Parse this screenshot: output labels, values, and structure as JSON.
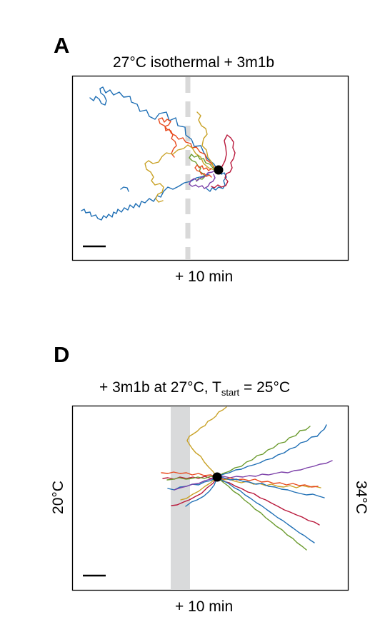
{
  "panel_a": {
    "letter": "A",
    "title": "27°C isothermal + 3m1b",
    "caption": "+ 10 min"
  },
  "panel_d": {
    "letter": "D",
    "title_prefix": "+ 3m1b at 27°C, T",
    "title_subscript": "start",
    "title_suffix": " = 25°C",
    "caption": "+ 10 min",
    "left_label": "20°C",
    "right_label": "34°C"
  },
  "colors": {
    "blue": "#1f6fb5",
    "orange_red": "#e8491d",
    "gold": "#c9a227",
    "crimson": "#b8173a",
    "green": "#6a9a2c",
    "purple": "#7b3fa8",
    "marker": "#000000",
    "dashed_line": "#d9d9d9",
    "shaded_band": "#d9dadb"
  }
}
